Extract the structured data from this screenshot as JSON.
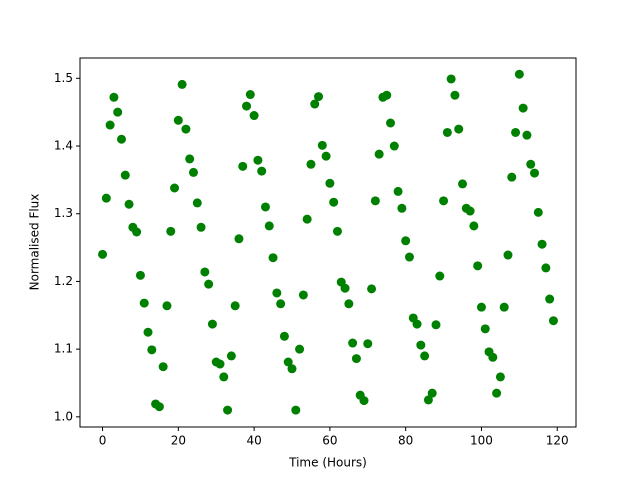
{
  "chart_data": {
    "type": "scatter",
    "x_label": "Time (Hours)",
    "y_label": "Normalised Flux",
    "color": "#008000",
    "x": [
      0,
      1,
      2,
      3,
      4,
      5,
      6,
      7,
      8,
      9,
      10,
      11,
      12,
      13,
      14,
      15,
      16,
      17,
      18,
      19,
      20,
      21,
      22,
      23,
      24,
      25,
      26,
      27,
      28,
      29,
      30,
      31,
      32,
      33,
      34,
      35,
      36,
      37,
      38,
      39,
      40,
      41,
      42,
      43,
      44,
      45,
      46,
      47,
      48,
      49,
      50,
      51,
      52,
      53,
      54,
      55,
      56,
      57,
      58,
      59,
      60,
      61,
      62,
      63,
      64,
      65,
      66,
      67,
      68,
      69,
      70,
      71,
      72,
      73,
      74,
      75,
      76,
      77,
      78,
      79,
      80,
      81,
      82,
      83,
      84,
      85,
      86,
      87,
      88,
      89,
      90,
      91,
      92,
      93,
      94,
      95,
      96,
      97,
      98,
      99,
      100,
      101,
      102,
      103,
      104,
      105,
      106,
      107,
      108,
      109,
      110,
      111,
      112,
      113,
      114,
      115,
      116,
      117,
      118,
      119
    ],
    "values": [
      1.24,
      1.323,
      1.431,
      1.472,
      1.45,
      1.41,
      1.357,
      1.314,
      1.28,
      1.273,
      1.209,
      1.168,
      1.125,
      1.099,
      1.019,
      1.015,
      1.074,
      1.164,
      1.274,
      1.338,
      1.438,
      1.491,
      1.425,
      1.381,
      1.361,
      1.316,
      1.28,
      1.214,
      1.196,
      1.137,
      1.081,
      1.078,
      1.059,
      1.01,
      1.09,
      1.164,
      1.263,
      1.37,
      1.459,
      1.476,
      1.445,
      1.379,
      1.363,
      1.31,
      1.282,
      1.235,
      1.183,
      1.167,
      1.119,
      1.081,
      1.071,
      1.01,
      1.1,
      1.18,
      1.292,
      1.373,
      1.462,
      1.473,
      1.401,
      1.385,
      1.345,
      1.317,
      1.274,
      1.199,
      1.19,
      1.167,
      1.109,
      1.086,
      1.032,
      1.024,
      1.108,
      1.189,
      1.319,
      1.388,
      1.472,
      1.475,
      1.434,
      1.4,
      1.333,
      1.308,
      1.26,
      1.236,
      1.146,
      1.137,
      1.106,
      1.09,
      1.025,
      1.035,
      1.136,
      1.208,
      1.319,
      1.42,
      1.499,
      1.475,
      1.425,
      1.344,
      1.308,
      1.304,
      1.282,
      1.223,
      1.162,
      1.13,
      1.096,
      1.088,
      1.035,
      1.059,
      1.162,
      1.239,
      1.354,
      1.42,
      1.506,
      1.456,
      1.416,
      1.373,
      1.36,
      1.302,
      1.255,
      1.22,
      1.174,
      1.142
    ],
    "xlim": [
      -5.95,
      124.95
    ],
    "ylim": [
      0.985,
      1.53
    ],
    "xticks": [
      0,
      20,
      40,
      60,
      80,
      100,
      120
    ],
    "yticks": [
      {
        "value": 1.0,
        "label": "1.0"
      },
      1.1,
      1.2,
      1.3,
      1.4,
      {
        "value": 1.5,
        "label": "1.5"
      }
    ]
  }
}
